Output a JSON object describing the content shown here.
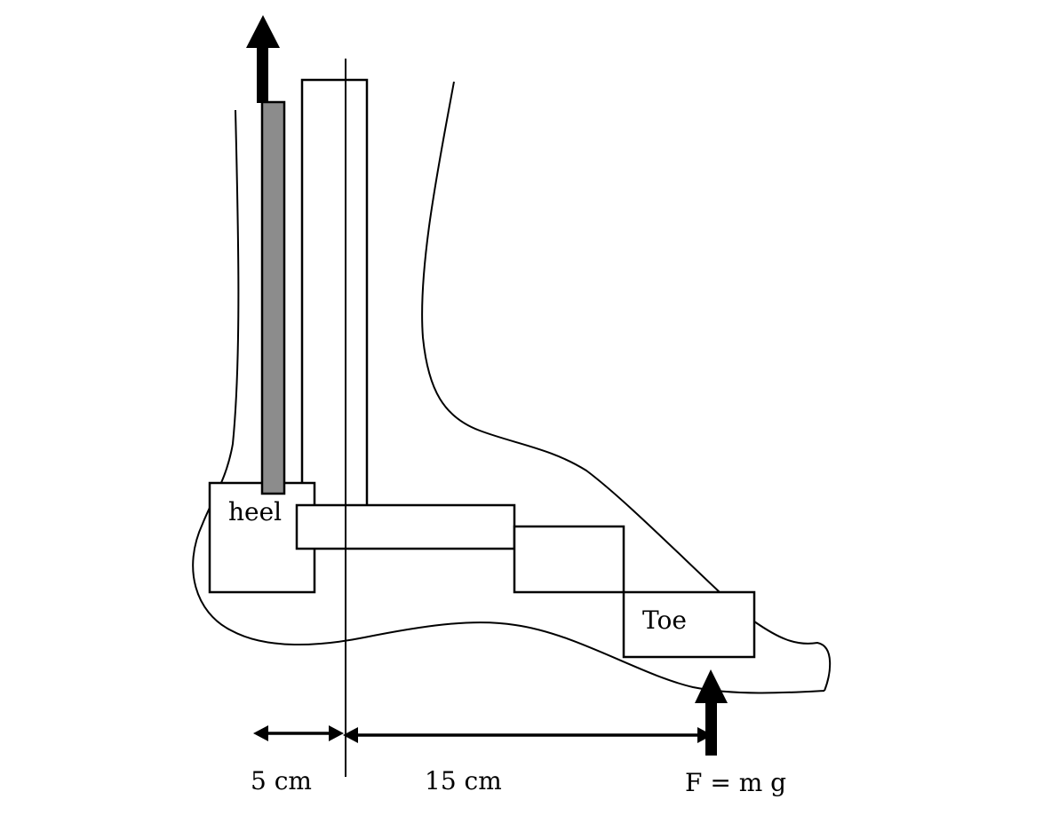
{
  "labels": {
    "heel": "heel",
    "toe": "Toe",
    "left_distance": "5 cm",
    "right_distance": "15 cm",
    "force": "F = m g"
  },
  "colors": {
    "tendon": "#8c8c8c",
    "ink": "#000000"
  }
}
